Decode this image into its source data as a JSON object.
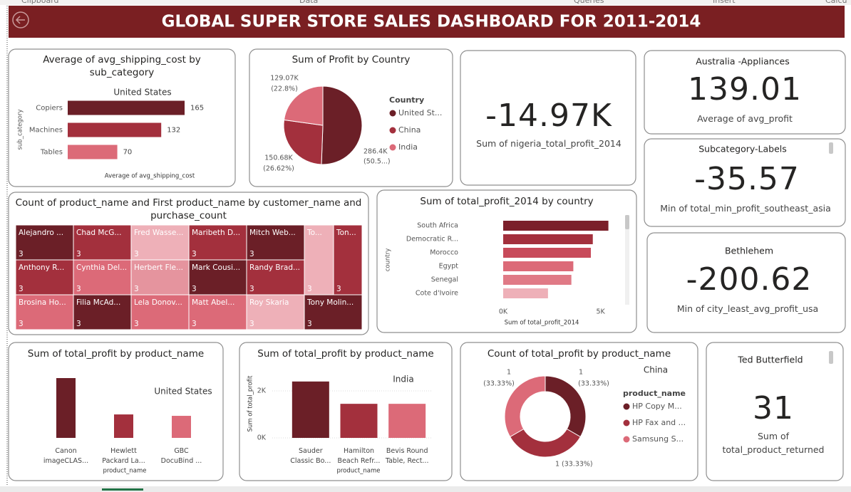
{
  "ribbon": [
    "Clipboard",
    "Data",
    "Queries",
    "Insert",
    "Calcu"
  ],
  "title": "GLOBAL SUPER STORE SALES DASHBOARD FOR 2011-2014",
  "cards": [
    {
      "value": "-14.97K",
      "label": "Sum of nigeria_total_profit_2014"
    },
    {
      "heading": "Australia -Appliances",
      "value": "139.01",
      "label": "Average of avg_profit"
    },
    {
      "heading": "Subcategory-Labels",
      "value": "-35.57",
      "label": "Min of total_min_profit_southeast_asia"
    },
    {
      "heading": "Bethlehem",
      "value": "-200.62",
      "label": "Min of city_least_avg_profit_usa"
    },
    {
      "heading": "Ted Butterfield",
      "value": "31",
      "label": "Sum of total_product_returned"
    }
  ],
  "chart_data": [
    {
      "type": "bar",
      "horizontal": true,
      "title": "Average of avg_shipping_cost by sub_category",
      "subtitle": "United States",
      "x_label": "Average of avg_shipping_cost",
      "y_label": "sub_category",
      "categories": [
        "Copiers",
        "Machines",
        "Tables"
      ],
      "values": [
        165,
        132,
        70
      ],
      "colors": [
        "#6b1f27",
        "#a3303d",
        "#dc6a78"
      ],
      "data_labels": true
    },
    {
      "type": "pie",
      "title": "Sum of Profit by Country",
      "legend_title": "Country",
      "categories": [
        "United St...",
        "China",
        "India"
      ],
      "values": [
        286400,
        150680,
        129070
      ],
      "value_labels": [
        "286.4K",
        "150.68K",
        "129.07K"
      ],
      "percent_labels": [
        "(50.5...)",
        "(26.62%)",
        "(22.8%)"
      ],
      "colors": [
        "#6b1f27",
        "#a3303d",
        "#dc6a78"
      ]
    },
    {
      "type": "treemap",
      "title": "Count of product_name and First product_name by customer_name and purchase_count",
      "categories": [
        "Alejandro ...",
        "Chad McG...",
        "Fred Wasse...",
        "Maribeth D...",
        "Mitch Web...",
        "To...",
        "Ton...",
        "Anthony R...",
        "Cynthia Del...",
        "Herbert Fle...",
        "Mark Cousi...",
        "Randy Brad...",
        "Brosina Ho...",
        "Filia McAd...",
        "Lela Donov...",
        "Matt Abel...",
        "Roy Skaria",
        "Tony Molin..."
      ],
      "values": [
        3,
        3,
        3,
        3,
        3,
        3,
        3,
        3,
        3,
        3,
        3,
        3,
        3,
        3,
        3,
        3,
        3,
        3
      ],
      "colors": [
        "#6b1f27",
        "#a3303d",
        "#eeb0b8",
        "#a3303d",
        "#6b1f27",
        "#eeb0b8",
        "#a3303d",
        "#a3303d",
        "#dc6a78",
        "#e5949e",
        "#6b1f27",
        "#a3303d",
        "#dc6a78",
        "#6b1f27",
        "#dc6a78",
        "#dc6a78",
        "#eeb0b8",
        "#6b1f27"
      ]
    },
    {
      "type": "bar",
      "horizontal": true,
      "title": "Sum of total_profit_2014 by country",
      "x_label": "Sum of total_profit_2014",
      "y_label": "country",
      "categories": [
        "South Africa",
        "Democratic R...",
        "Morocco",
        "Egypt",
        "Senegal",
        "Cote d'Ivoire"
      ],
      "values": [
        5400,
        4600,
        4500,
        3600,
        3500,
        2300
      ],
      "colors": [
        "#7b1f2a",
        "#a3303d",
        "#c84a5a",
        "#dc6a78",
        "#e07a86",
        "#eeb0b8"
      ],
      "xlim": [
        0,
        6000
      ],
      "xticks": [
        {
          "value": 0,
          "label": "0K"
        },
        {
          "value": 5000,
          "label": "5K"
        }
      ],
      "grid": false
    },
    {
      "type": "bar",
      "title": "Sum of total_profit by product_name",
      "subtitle": "United States",
      "x_label": "product_name",
      "categories": [
        "Canon\nimageCLAS...",
        "Hewlett\nPackard La...",
        "GBC\nDocuBind ..."
      ],
      "values": [
        2550,
        1000,
        940
      ],
      "colors": [
        "#6b1f27",
        "#a3303d",
        "#dc6a78"
      ]
    },
    {
      "type": "bar",
      "title": "Sum of total_profit by product_name",
      "subtitle": "India",
      "x_label": "product_name",
      "y_label": "Sum of total_profit",
      "categories": [
        "Sauder\nClassic Bo...",
        "Hamilton\nBeach Refr...",
        "Bevis Round\nTable, Rect..."
      ],
      "values": [
        2400,
        1450,
        1450
      ],
      "colors": [
        "#6b1f27",
        "#a3303d",
        "#dc6a78"
      ],
      "ylim": [
        0,
        3000
      ],
      "yticks": [
        {
          "value": 0,
          "label": "0K"
        },
        {
          "value": 2000,
          "label": "2K"
        }
      ],
      "grid": true
    },
    {
      "type": "donut",
      "title": "Count of total_profit by product_name",
      "subtitle": "China",
      "legend_title": "product_name",
      "categories": [
        "HP Copy M...",
        "HP Fax and ...",
        "Samsung S..."
      ],
      "values": [
        1,
        1,
        1
      ],
      "percent_labels": [
        "(33.33%)",
        "(33.33%)",
        "(33.33%)"
      ],
      "colors": [
        "#6b1f27",
        "#a3303d",
        "#dc6a78"
      ]
    }
  ]
}
